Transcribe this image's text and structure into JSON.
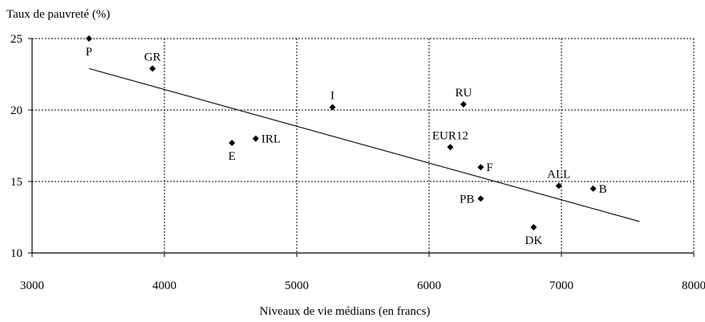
{
  "chart_data": {
    "type": "scatter",
    "title": "",
    "ylabel": "Taux de pauvreté (%)",
    "xlabel": "Niveaux de vie médians (en francs)",
    "xlim": [
      3000,
      8000
    ],
    "ylim": [
      10,
      25
    ],
    "xticks": [
      3000,
      4000,
      5000,
      6000,
      7000,
      8000
    ],
    "yticks": [
      10,
      15,
      20,
      25
    ],
    "grid": "dotted",
    "points": [
      {
        "label": "P",
        "x": 3430,
        "y": 25.0,
        "label_pos": "below"
      },
      {
        "label": "GR",
        "x": 3910,
        "y": 22.9,
        "label_pos": "above"
      },
      {
        "label": "E",
        "x": 4510,
        "y": 17.7,
        "label_pos": "below"
      },
      {
        "label": "IRL",
        "x": 4690,
        "y": 18.0,
        "label_pos": "right"
      },
      {
        "label": "I",
        "x": 5270,
        "y": 20.2,
        "label_pos": "above"
      },
      {
        "label": "RU",
        "x": 6260,
        "y": 20.4,
        "label_pos": "above"
      },
      {
        "label": "EUR12",
        "x": 6160,
        "y": 17.4,
        "label_pos": "above"
      },
      {
        "label": "F",
        "x": 6390,
        "y": 16.0,
        "label_pos": "right"
      },
      {
        "label": "PB",
        "x": 6390,
        "y": 13.8,
        "label_pos": "left"
      },
      {
        "label": "ALL",
        "x": 6980,
        "y": 14.7,
        "label_pos": "above"
      },
      {
        "label": "B",
        "x": 7240,
        "y": 14.5,
        "label_pos": "right"
      },
      {
        "label": "DK",
        "x": 6790,
        "y": 11.8,
        "label_pos": "below"
      }
    ],
    "trendline": {
      "x": [
        3430,
        7590
      ],
      "y": [
        22.9,
        12.2
      ]
    }
  }
}
